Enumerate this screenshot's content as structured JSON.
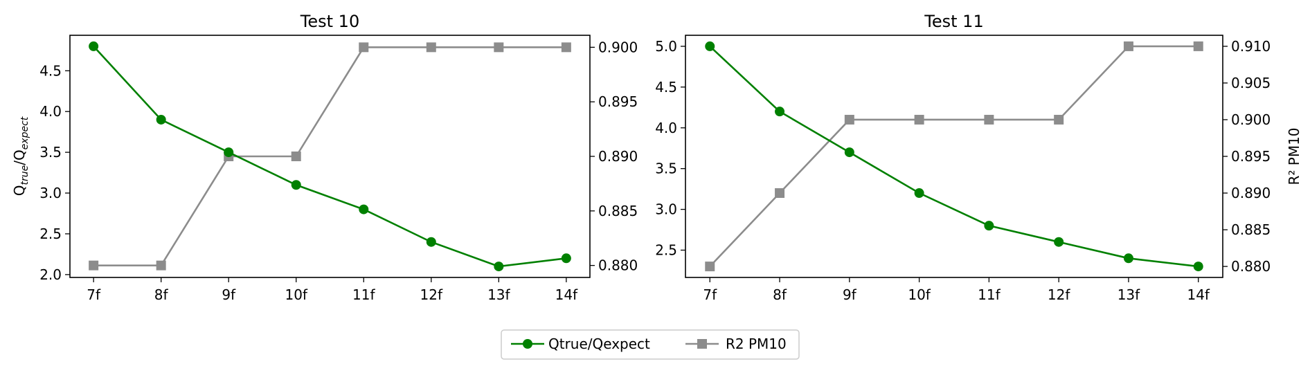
{
  "legend": {
    "items": [
      {
        "label": "Qtrue/Qexpect",
        "color": "#008000",
        "marker": "circle"
      },
      {
        "label": "R2 PM10",
        "color": "#8c8c8c",
        "marker": "square"
      }
    ]
  },
  "chart_data": [
    {
      "type": "line",
      "title": "Test 10",
      "categories": [
        "7f",
        "8f",
        "9f",
        "10f",
        "11f",
        "12f",
        "13f",
        "14f"
      ],
      "ylabel": "Qtrue/Qexpect",
      "ylabel_parts": {
        "base": "Q",
        "sub1": "true",
        "sep": "/Q",
        "sub2": "expect"
      },
      "y2label": "",
      "ylim": [
        1.965,
        4.935
      ],
      "yticks": [
        "2.0",
        "2.5",
        "3.0",
        "3.5",
        "4.0",
        "4.5"
      ],
      "y2lim": [
        0.8789,
        0.9011
      ],
      "y2ticks": [
        "0.880",
        "0.885",
        "0.890",
        "0.895",
        "0.900"
      ],
      "series": [
        {
          "name": "Qtrue/Qexpect",
          "axis": "left",
          "color": "#008000",
          "marker": "circle",
          "values": [
            4.8,
            3.9,
            3.5,
            3.1,
            2.8,
            2.4,
            2.1,
            2.2
          ]
        },
        {
          "name": "R2 PM10",
          "axis": "right",
          "color": "#8c8c8c",
          "marker": "square",
          "values": [
            0.88,
            0.88,
            0.89,
            0.89,
            0.9,
            0.9,
            0.9,
            0.9
          ]
        }
      ]
    },
    {
      "type": "line",
      "title": "Test 11",
      "categories": [
        "7f",
        "8f",
        "9f",
        "10f",
        "11f",
        "12f",
        "13f",
        "14f"
      ],
      "ylabel": "",
      "y2label": "R² PM10",
      "ylim": [
        2.165,
        5.135
      ],
      "yticks": [
        "2.5",
        "3.0",
        "3.5",
        "4.0",
        "4.5",
        "5.0"
      ],
      "y2lim": [
        0.8785,
        0.9115
      ],
      "y2ticks": [
        "0.880",
        "0.885",
        "0.890",
        "0.895",
        "0.900",
        "0.905",
        "0.910"
      ],
      "series": [
        {
          "name": "Qtrue/Qexpect",
          "axis": "left",
          "color": "#008000",
          "marker": "circle",
          "values": [
            5.0,
            4.2,
            3.7,
            3.2,
            2.8,
            2.6,
            2.4,
            2.3
          ]
        },
        {
          "name": "R2 PM10",
          "axis": "right",
          "color": "#8c8c8c",
          "marker": "square",
          "values": [
            0.88,
            0.89,
            0.9,
            0.9,
            0.9,
            0.9,
            0.91,
            0.91
          ]
        }
      ]
    }
  ]
}
